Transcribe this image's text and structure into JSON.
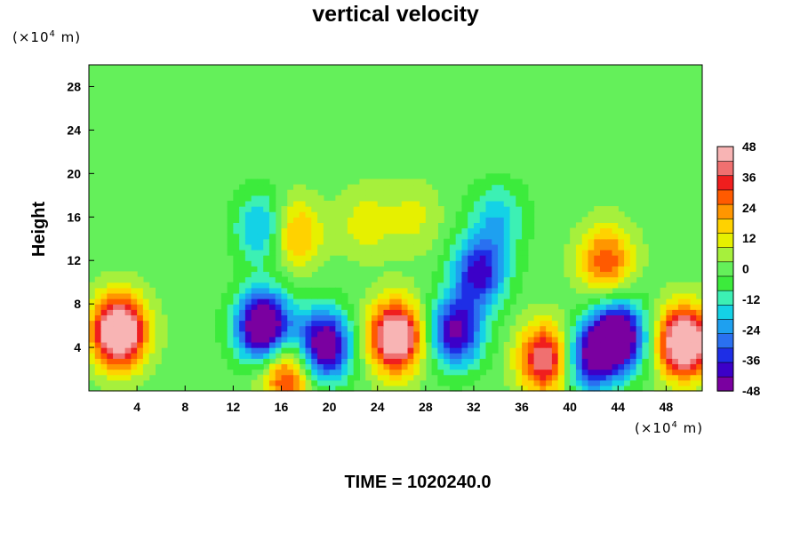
{
  "chart_data": {
    "type": "heatmap",
    "title": "vertical velocity",
    "ylabel": "Height",
    "xunit_prefix": "(×10",
    "xunit_exp": "4",
    "xunit_suffix": " m)",
    "yunit_prefix": "(×10",
    "yunit_exp": "4",
    "yunit_suffix": " m)",
    "xlim": [
      0,
      51
    ],
    "ylim": [
      0,
      30
    ],
    "x_ticks": [
      4,
      8,
      12,
      16,
      20,
      24,
      28,
      32,
      36,
      40,
      44,
      48
    ],
    "y_ticks": [
      4,
      8,
      12,
      16,
      20,
      24,
      28
    ],
    "colorbar": {
      "range": [
        -48,
        48
      ],
      "ticks": [
        48,
        36,
        24,
        12,
        0,
        -12,
        -24,
        -36,
        -48
      ],
      "colors": [
        "#7a00a0",
        "#3c00c8",
        "#1e2ee6",
        "#2a70f0",
        "#1ea0f0",
        "#14d2e6",
        "#3cf0b4",
        "#3ceb3c",
        "#64f05a",
        "#a6f03c",
        "#e6f000",
        "#ffd200",
        "#ff9600",
        "#ff5a00",
        "#f01e1e",
        "#f07070",
        "#f8b4b4"
      ]
    },
    "features": [
      {
        "x": 2.5,
        "y": 5.5,
        "w": 64
      },
      {
        "x": 49.5,
        "y": 4.5,
        "w": 62
      },
      {
        "x": 25.5,
        "y": 5,
        "w": 58
      },
      {
        "x": 14.5,
        "y": 6,
        "w": -62
      },
      {
        "x": 19.5,
        "y": 4.2,
        "w": -55
      },
      {
        "x": 44,
        "y": 5,
        "w": -60
      },
      {
        "x": 41.5,
        "y": 3,
        "w": -40
      },
      {
        "x": 30.5,
        "y": 5.5,
        "w": -45
      },
      {
        "x": 32.5,
        "y": 11,
        "w": -40
      },
      {
        "x": 38,
        "y": 3,
        "w": 45
      },
      {
        "x": 43,
        "y": 12,
        "w": 30
      },
      {
        "x": 14.5,
        "y": 15,
        "w": -25
      },
      {
        "x": 16.5,
        "y": 1.5,
        "w": 35
      },
      {
        "x": 17,
        "y": 14.5,
        "w": 25
      },
      {
        "x": 23,
        "y": 15.5,
        "w": 12
      },
      {
        "x": 27,
        "y": 16,
        "w": 10
      },
      {
        "x": 34,
        "y": 16,
        "w": -18
      }
    ],
    "time_label": "TIME = 1020240.0"
  }
}
